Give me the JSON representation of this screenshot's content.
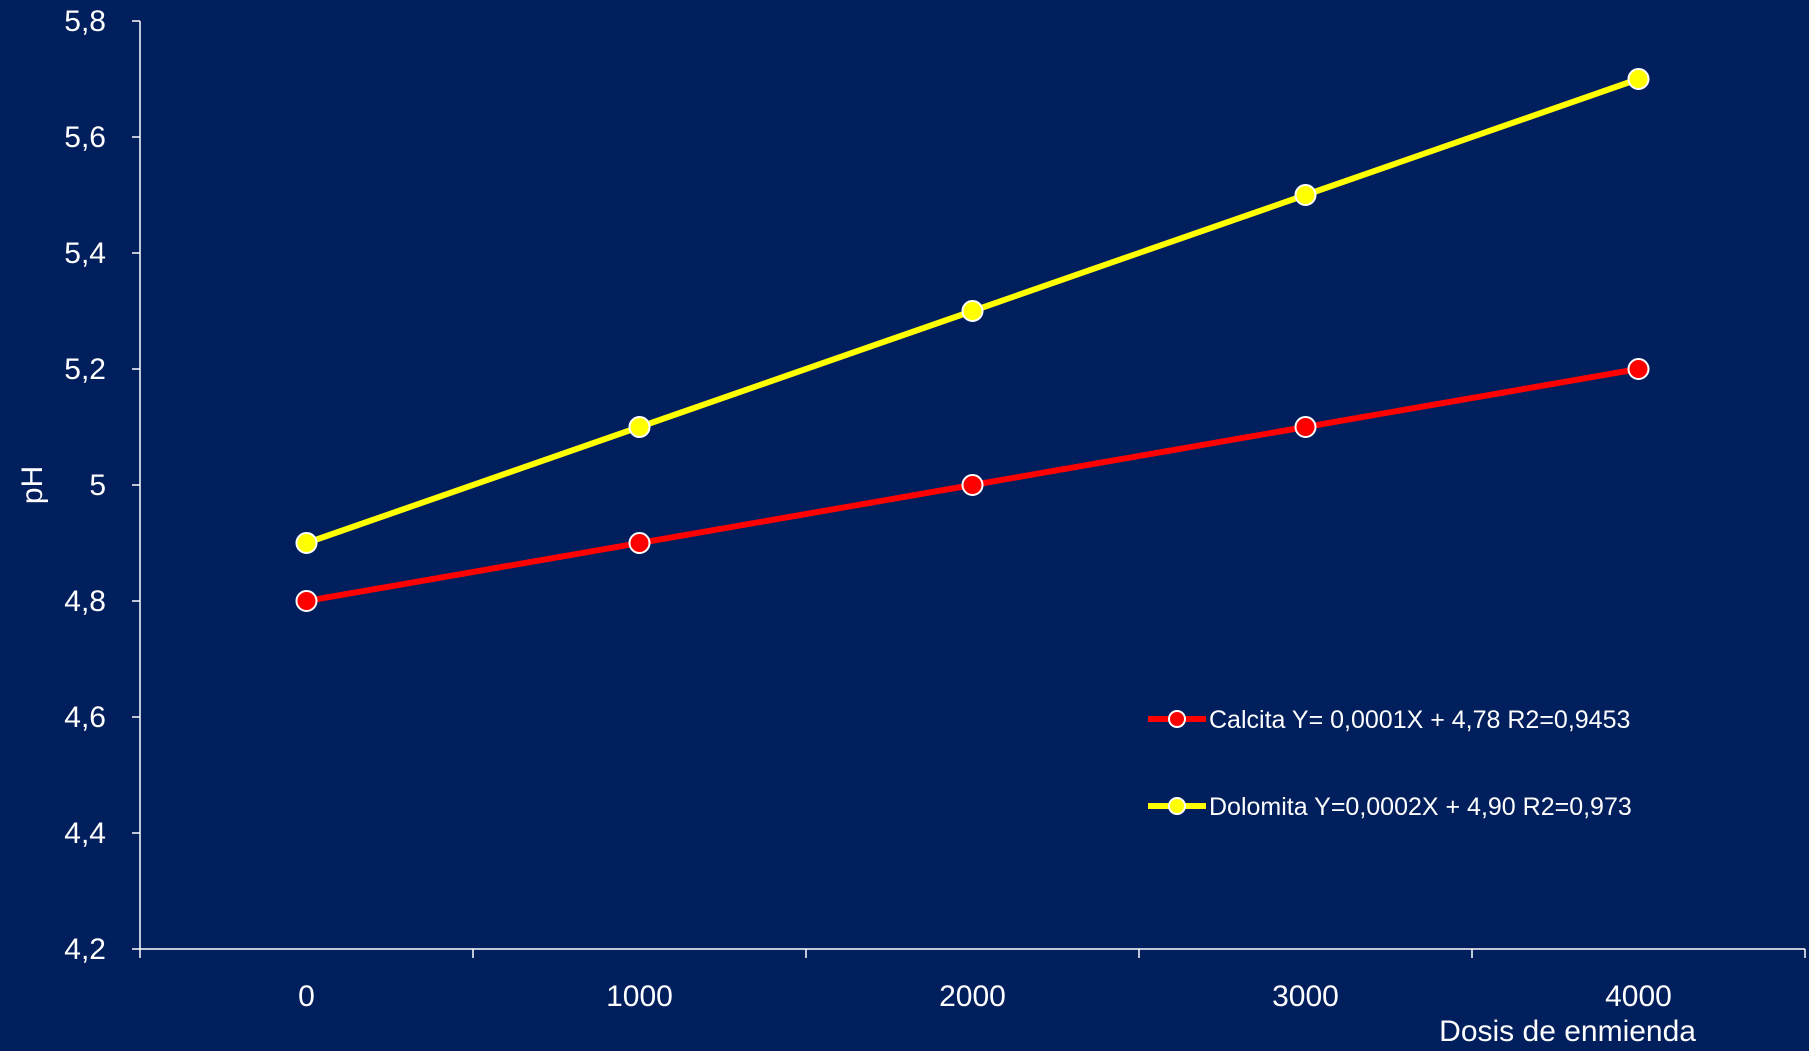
{
  "chart_data": {
    "type": "line",
    "xlabel": "Dosis de enmienda",
    "ylabel": "pH",
    "x": [
      0,
      1000,
      2000,
      3000,
      4000
    ],
    "xlim": [
      -500,
      4500
    ],
    "ylim": [
      4.2,
      5.8
    ],
    "yticks": [
      4.2,
      4.4,
      4.6,
      4.8,
      5,
      5.2,
      5.4,
      5.6,
      5.8
    ],
    "ytick_labels": [
      "4,2",
      "4,4",
      "4,6",
      "4,8",
      "5",
      "5,2",
      "5,4",
      "5,6",
      "5,8"
    ],
    "xtick_labels": [
      "0",
      "1000",
      "2000",
      "3000",
      "4000"
    ],
    "grid": false,
    "legend_position": "bottom-right",
    "series": [
      {
        "name": "Calcita Y= 0,0001X + 4,78 R2=0,9453",
        "color": "#ff0000",
        "values": [
          4.8,
          4.9,
          5.0,
          5.1,
          5.2
        ]
      },
      {
        "name": "Dolomita Y=0,0002X + 4,90 R2=0,973",
        "color": "#ffff00",
        "values": [
          4.9,
          5.1,
          5.3,
          5.5,
          5.7
        ]
      }
    ],
    "axis_color": "#ffffff",
    "background": "#001f5c"
  }
}
